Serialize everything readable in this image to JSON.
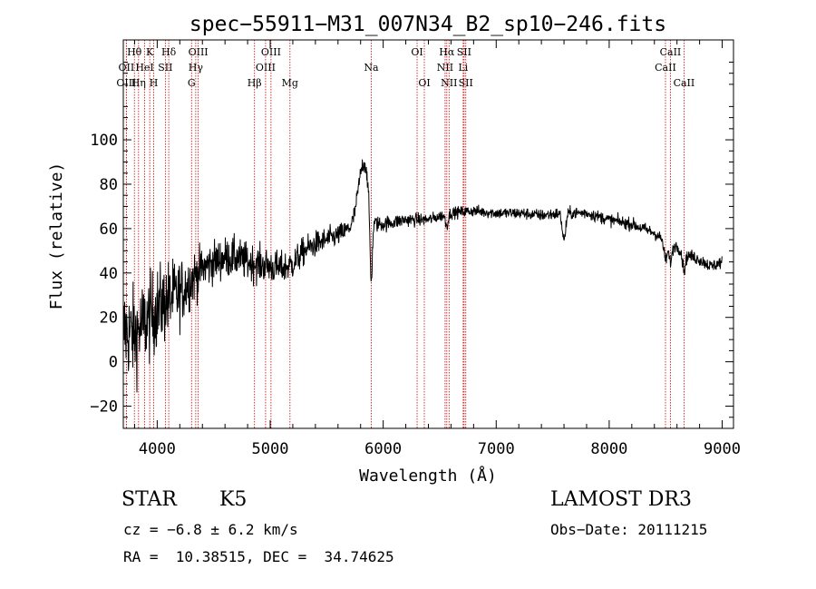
{
  "chart_data": {
    "type": "line",
    "title": "spec−55911−M31_007N34_B2_sp10−246.fits",
    "xlabel": "Wavelength (Å)",
    "ylabel": "Flux (relative)",
    "xlim": [
      3700,
      9100
    ],
    "ylim": [
      -30,
      145
    ],
    "xticks": [
      4000,
      5000,
      6000,
      7000,
      8000,
      9000
    ],
    "xtick_labels": [
      "4000",
      "5000",
      "6000",
      "7000",
      "8000",
      "9000"
    ],
    "yticks": [
      -20,
      0,
      20,
      40,
      60,
      80,
      100
    ],
    "ytick_labels": [
      "−20",
      "0",
      "20",
      "40",
      "60",
      "80",
      "100"
    ],
    "colors": {
      "spectrum": "#000000",
      "lines": "#cc0000",
      "axes": "#000000"
    },
    "spectral_lines": [
      {
        "label": "Hθ",
        "wavelength": 3798,
        "row": 0
      },
      {
        "label": "OII",
        "wavelength": 3727,
        "row": 1
      },
      {
        "label": "OIII",
        "wavelength": 3727,
        "row": 2
      },
      {
        "label": "K",
        "wavelength": 3934,
        "row": 0
      },
      {
        "label": "HeI",
        "wavelength": 3889,
        "row": 1
      },
      {
        "label": "Hη",
        "wavelength": 3835,
        "row": 2
      },
      {
        "label": "H",
        "wavelength": 3969,
        "row": 2
      },
      {
        "label": "SII",
        "wavelength": 4072,
        "row": 1
      },
      {
        "label": "Hδ",
        "wavelength": 4102,
        "row": 0
      },
      {
        "label": "OIII",
        "wavelength": 4363,
        "row": 0
      },
      {
        "label": "Hγ",
        "wavelength": 4341,
        "row": 1
      },
      {
        "label": "G",
        "wavelength": 4304,
        "row": 2
      },
      {
        "label": "OIII",
        "wavelength": 5007,
        "row": 0
      },
      {
        "label": "OIII",
        "wavelength": 4959,
        "row": 1
      },
      {
        "label": "Hβ",
        "wavelength": 4861,
        "row": 2
      },
      {
        "label": "Mg",
        "wavelength": 5175,
        "row": 2
      },
      {
        "label": "Na",
        "wavelength": 5894,
        "row": 1
      },
      {
        "label": "OI",
        "wavelength": 6300,
        "row": 0
      },
      {
        "label": "OI",
        "wavelength": 6364,
        "row": 2
      },
      {
        "label": "Hα",
        "wavelength": 6563,
        "row": 0
      },
      {
        "label": "SII",
        "wavelength": 6716,
        "row": 0
      },
      {
        "label": "NII",
        "wavelength": 6548,
        "row": 1
      },
      {
        "label": "Li",
        "wavelength": 6708,
        "row": 1
      },
      {
        "label": "NII",
        "wavelength": 6583,
        "row": 2
      },
      {
        "label": "SII",
        "wavelength": 6731,
        "row": 2
      },
      {
        "label": "CaII",
        "wavelength": 8542,
        "row": 0
      },
      {
        "label": "CaII",
        "wavelength": 8498,
        "row": 1
      },
      {
        "label": "CaII",
        "wavelength": 8662,
        "row": 2
      }
    ],
    "continuum_knots": [
      [
        3700,
        14
      ],
      [
        3800,
        12
      ],
      [
        3900,
        18
      ],
      [
        4000,
        24
      ],
      [
        4100,
        28
      ],
      [
        4200,
        31
      ],
      [
        4300,
        37
      ],
      [
        4400,
        42
      ],
      [
        4500,
        45
      ],
      [
        4600,
        47
      ],
      [
        4700,
        47
      ],
      [
        4800,
        45
      ],
      [
        4900,
        44
      ],
      [
        5000,
        43
      ],
      [
        5100,
        42
      ],
      [
        5200,
        44
      ],
      [
        5300,
        50
      ],
      [
        5400,
        53
      ],
      [
        5500,
        55
      ],
      [
        5600,
        57
      ],
      [
        5700,
        60
      ],
      [
        5800,
        64
      ],
      [
        5850,
        72
      ],
      [
        5900,
        62
      ],
      [
        6000,
        62
      ],
      [
        6200,
        64
      ],
      [
        6400,
        64
      ],
      [
        6600,
        67
      ],
      [
        6800,
        68
      ],
      [
        7000,
        67
      ],
      [
        7200,
        67
      ],
      [
        7400,
        66
      ],
      [
        7600,
        67
      ],
      [
        7800,
        67
      ],
      [
        8000,
        64
      ],
      [
        8200,
        62
      ],
      [
        8400,
        58
      ],
      [
        8500,
        54
      ],
      [
        8600,
        52
      ],
      [
        8700,
        48
      ],
      [
        8800,
        46
      ],
      [
        8900,
        43
      ],
      [
        9000,
        45
      ]
    ],
    "features": [
      {
        "center": 5815,
        "width": 40,
        "depth": -22
      },
      {
        "center": 5893,
        "width": 10,
        "depth": 30
      },
      {
        "center": 6563,
        "width": 12,
        "depth": 5
      },
      {
        "center": 7600,
        "width": 15,
        "depth": 12
      },
      {
        "center": 8498,
        "width": 14,
        "depth": 8
      },
      {
        "center": 8542,
        "width": 14,
        "depth": 8
      },
      {
        "center": 8662,
        "width": 14,
        "depth": 8
      }
    ],
    "noise_profile": [
      [
        3700,
        11
      ],
      [
        4100,
        9
      ],
      [
        4400,
        5
      ],
      [
        5000,
        4
      ],
      [
        5800,
        2
      ],
      [
        6500,
        1.3
      ],
      [
        9000,
        1.5
      ]
    ]
  },
  "info": {
    "object_class": "STAR",
    "subclass": "K5",
    "survey": "LAMOST DR3",
    "redshift": "cz = −6.8 ± 6.2 km/s",
    "obs_date": "Obs−Date: 20111215",
    "coordinates": "RA =  10.38515, DEC =  34.74625"
  }
}
